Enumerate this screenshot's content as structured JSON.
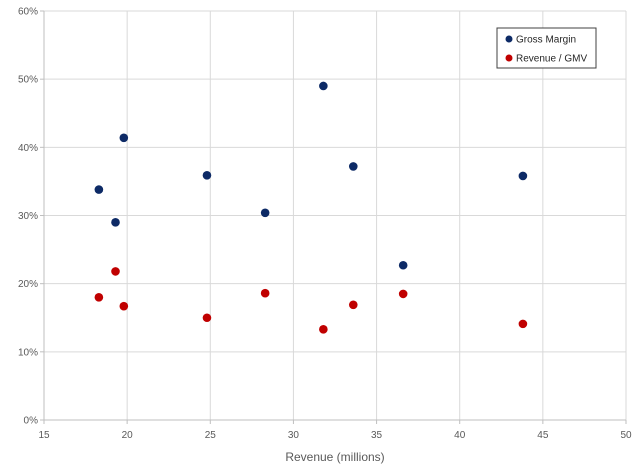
{
  "chart_data": {
    "type": "scatter",
    "title": "",
    "xlabel": "Revenue (millions)",
    "ylabel": "",
    "xlim": [
      15,
      50
    ],
    "ylim": [
      0,
      60
    ],
    "x_ticks": [
      15,
      20,
      25,
      30,
      35,
      40,
      45,
      50
    ],
    "y_ticks": [
      0,
      10,
      20,
      30,
      40,
      50,
      60
    ],
    "x_tick_labels": [
      "15",
      "20",
      "25",
      "30",
      "35",
      "40",
      "45",
      "50"
    ],
    "y_tick_labels": [
      "0%",
      "10%",
      "20%",
      "30%",
      "40%",
      "50%",
      "60%"
    ],
    "grid": true,
    "legend_position": "top-right",
    "series": [
      {
        "name": "Gross Margin",
        "color": "#0d2a66",
        "points": [
          {
            "x": 18.3,
            "y": 33.8
          },
          {
            "x": 19.3,
            "y": 29.0
          },
          {
            "x": 19.8,
            "y": 41.4
          },
          {
            "x": 24.8,
            "y": 35.9
          },
          {
            "x": 28.3,
            "y": 30.4
          },
          {
            "x": 31.8,
            "y": 49.0
          },
          {
            "x": 33.6,
            "y": 37.2
          },
          {
            "x": 36.6,
            "y": 22.7
          },
          {
            "x": 43.8,
            "y": 35.8
          }
        ]
      },
      {
        "name": "Revenue / GMV",
        "color": "#c00000",
        "points": [
          {
            "x": 18.3,
            "y": 18.0
          },
          {
            "x": 19.3,
            "y": 21.8
          },
          {
            "x": 19.8,
            "y": 16.7
          },
          {
            "x": 24.8,
            "y": 15.0
          },
          {
            "x": 28.3,
            "y": 18.6
          },
          {
            "x": 31.8,
            "y": 13.3
          },
          {
            "x": 33.6,
            "y": 16.9
          },
          {
            "x": 36.6,
            "y": 18.5
          },
          {
            "x": 43.8,
            "y": 14.1
          }
        ]
      }
    ]
  }
}
